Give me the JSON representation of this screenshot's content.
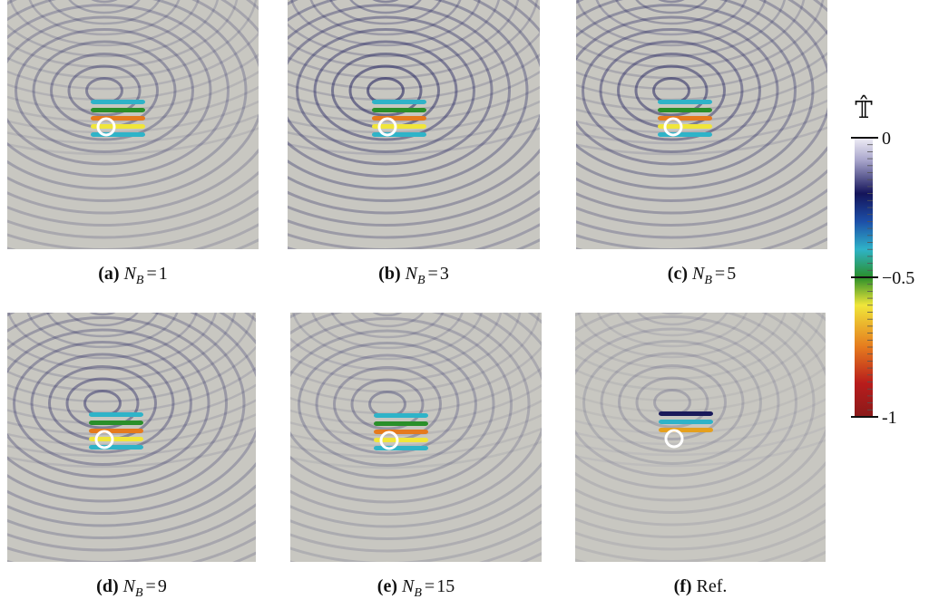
{
  "figure": {
    "panels": [
      {
        "label": "(a)",
        "symbol": "N",
        "subscript": "B",
        "equals": "=",
        "value": "1"
      },
      {
        "label": "(b)",
        "symbol": "N",
        "subscript": "B",
        "equals": "=",
        "value": "3"
      },
      {
        "label": "(c)",
        "symbol": "N",
        "subscript": "B",
        "equals": "=",
        "value": "5"
      },
      {
        "label": "(d)",
        "symbol": "N",
        "subscript": "B",
        "equals": "=",
        "value": "9"
      },
      {
        "label": "(e)",
        "symbol": "N",
        "subscript": "B",
        "equals": "=",
        "value": "15"
      },
      {
        "label": "(f)",
        "text": "Ref."
      }
    ],
    "colorbar": {
      "title": "𝕋̂",
      "lim": [
        -1,
        0
      ],
      "ticks": [
        0,
        {
          "value": -0.5,
          "label": "−0.5"
        },
        -1
      ]
    }
  }
}
